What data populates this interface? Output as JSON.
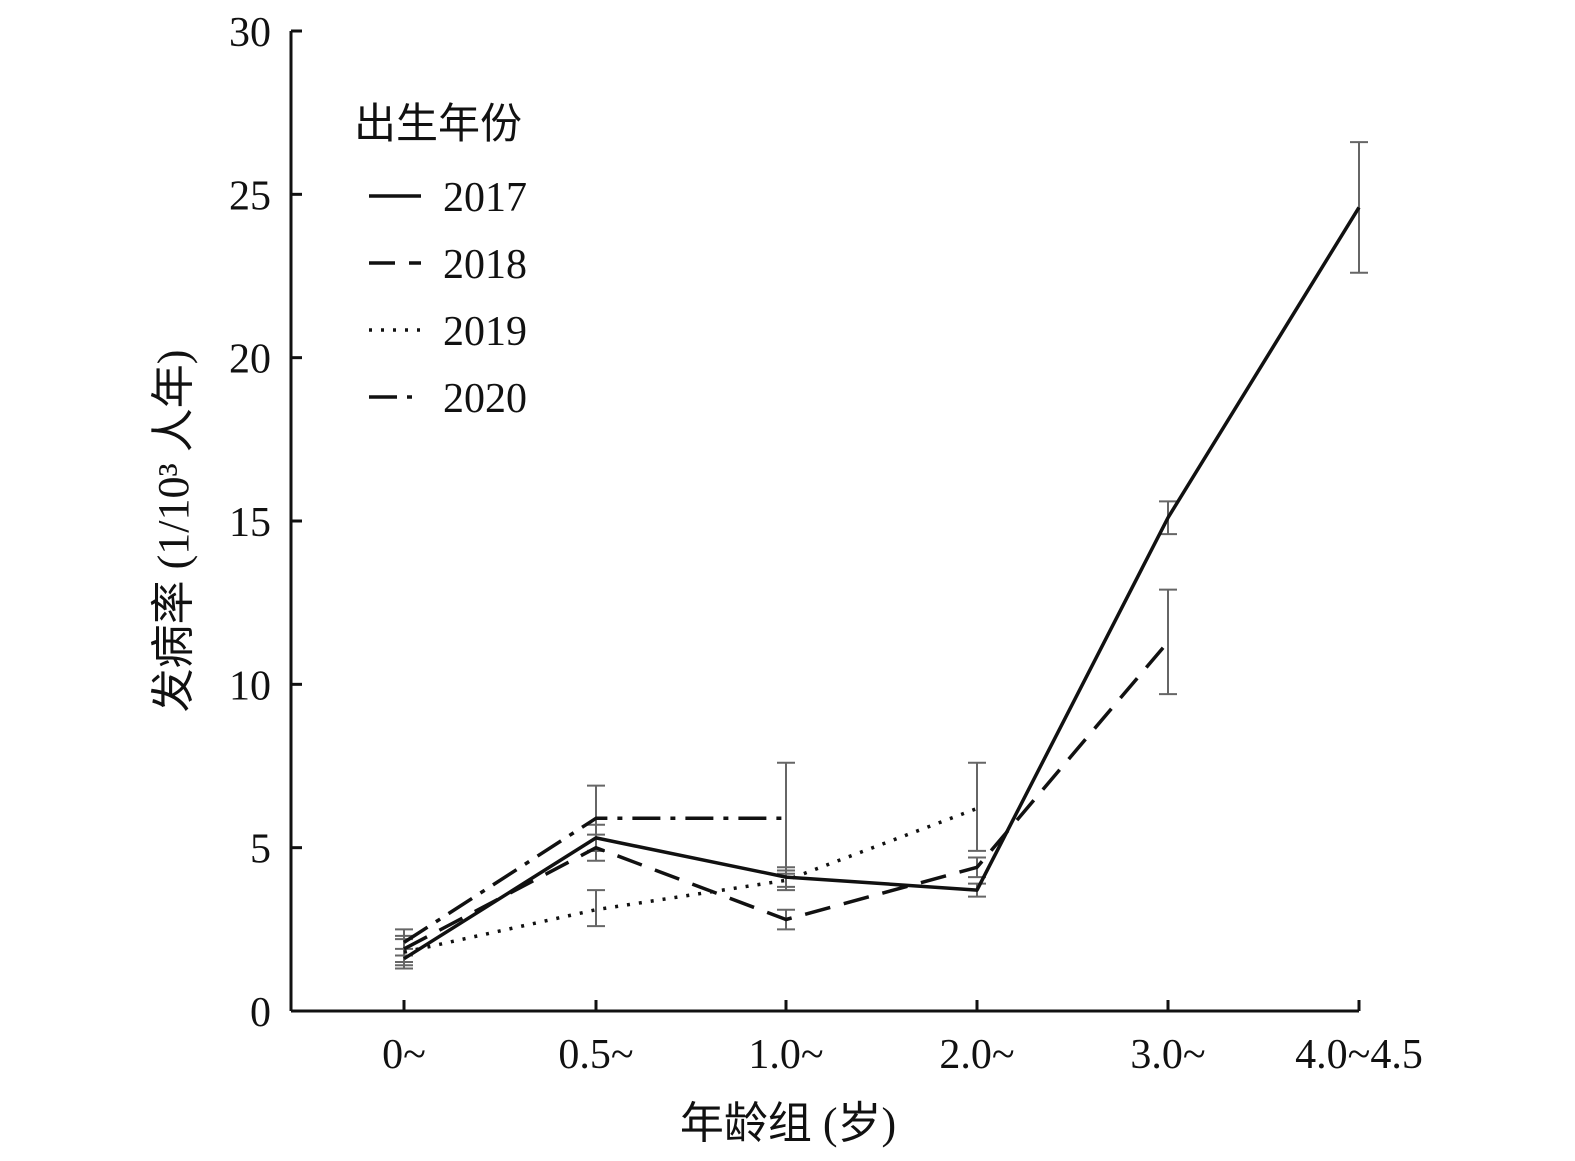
{
  "chart_data": {
    "type": "line",
    "title": "",
    "xlabel": "年龄组 (岁)",
    "ylabel": "发病率 (1/10³ 人年)",
    "categories": [
      "0~",
      "0.5~",
      "1.0~",
      "2.0~",
      "3.0~",
      "4.0~4.5"
    ],
    "yticks": [
      "0",
      "5",
      "10",
      "15",
      "20",
      "25",
      "30"
    ],
    "ylim": [
      0,
      30
    ],
    "grid": false,
    "legend": {
      "title": "出生年份",
      "placement": "top-left"
    },
    "series": [
      {
        "name": "2017",
        "style": "solid",
        "values": [
          1.6,
          5.3,
          4.1,
          3.7,
          15.1,
          24.6
        ],
        "err_low": [
          1.3,
          4.9,
          3.8,
          3.5,
          14.6,
          22.6
        ],
        "err_high": [
          1.9,
          5.7,
          4.4,
          3.9,
          15.6,
          26.6
        ]
      },
      {
        "name": "2018",
        "style": "dashed",
        "values": [
          1.9,
          5.0,
          2.8,
          4.4,
          11.3,
          null
        ],
        "err_low": [
          1.5,
          4.6,
          2.5,
          4.1,
          9.7,
          null
        ],
        "err_high": [
          2.3,
          5.4,
          3.1,
          4.7,
          12.9,
          null
        ]
      },
      {
        "name": "2019",
        "style": "dotted",
        "values": [
          1.8,
          3.1,
          4.0,
          6.2,
          null,
          null
        ],
        "err_low": [
          1.4,
          2.6,
          3.7,
          4.9,
          null,
          null
        ],
        "err_high": [
          2.2,
          3.7,
          4.3,
          7.6,
          null,
          null
        ]
      },
      {
        "name": "2020",
        "style": "dashdot",
        "values": [
          2.1,
          5.9,
          5.9,
          null,
          null,
          null
        ],
        "err_low": [
          1.7,
          4.9,
          4.2,
          null,
          null,
          null
        ],
        "err_high": [
          2.5,
          6.9,
          7.6,
          null,
          null,
          null
        ]
      }
    ],
    "colors": {
      "line": "#111111",
      "error_bar": "#666666"
    }
  }
}
